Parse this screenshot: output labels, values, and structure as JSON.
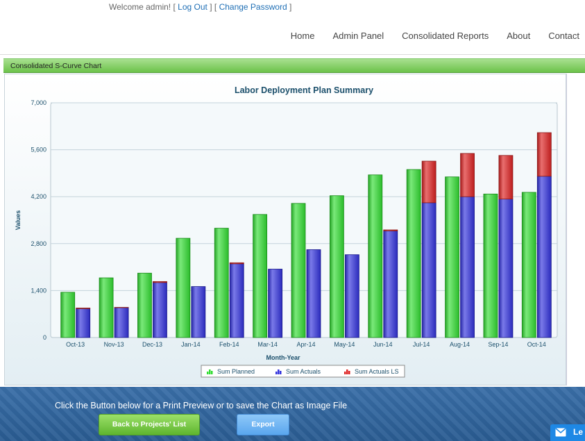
{
  "header": {
    "welcome_prefix": "Welcome admin! [",
    "logout": "Log Out",
    "separator": "] [",
    "change_password": "Change Password",
    "suffix": "]"
  },
  "nav": [
    {
      "label": "Home"
    },
    {
      "label": "Admin Panel"
    },
    {
      "label": "Consolidated Reports"
    },
    {
      "label": "About"
    },
    {
      "label": "Contact"
    }
  ],
  "panel": {
    "title": "Consolidated S-Curve Chart"
  },
  "chart_data": {
    "type": "bar",
    "title": "Labor Deployment Plan Summary",
    "xlabel": "Month-Year",
    "ylabel": "Values",
    "ylim": [
      0,
      7000
    ],
    "yticks": [
      0,
      1400,
      2800,
      4200,
      5600,
      7000
    ],
    "ytick_labels": [
      "0",
      "1,400",
      "2,800",
      "4,200",
      "5,600",
      "7,000"
    ],
    "grid": true,
    "legend_position": "bottom",
    "categories": [
      "Oct-13",
      "Nov-13",
      "Dec-13",
      "Jan-14",
      "Feb-14",
      "Mar-14",
      "Apr-14",
      "May-14",
      "Jun-14",
      "Jul-14",
      "Aug-14",
      "Sep-14",
      "Oct-14"
    ],
    "series": [
      {
        "name": "Sum Planned",
        "color": "#33dd33",
        "values": [
          1350,
          1780,
          1920,
          2960,
          3260,
          3670,
          4000,
          4230,
          4850,
          5010,
          4790,
          4280,
          4330
        ]
      },
      {
        "name": "Sum Actuals",
        "color": "#3333dd",
        "values": [
          860,
          890,
          1640,
          1520,
          2200,
          2040,
          2620,
          2470,
          3180,
          4020,
          4200,
          4130,
          4810
        ]
      },
      {
        "name": "Sum Actuals LS",
        "color": "#dd2222",
        "values": [
          20,
          10,
          30,
          0,
          30,
          0,
          0,
          0,
          30,
          1240,
          1290,
          1300,
          1300
        ]
      }
    ]
  },
  "footer": {
    "message": "Click the Button below for a Print Preview or to save the Chart as Image File",
    "back_button": "Back to Projects' List",
    "export_button": "Export",
    "chat_label": "Le"
  },
  "colors": {
    "panel_green": "#6cc24a",
    "footer_blue": "#2a5c92",
    "link_blue": "#1f6fb5",
    "title_teal": "#1b4f6b"
  }
}
